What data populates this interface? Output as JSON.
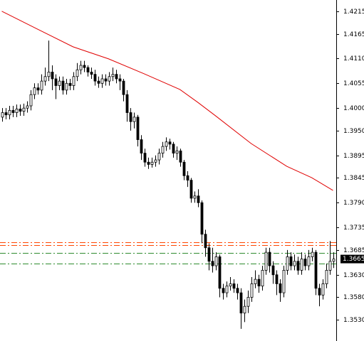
{
  "chart_data": {
    "type": "candlestick",
    "ylim": [
      1.3483,
      1.424
    ],
    "yticks": [
      {
        "value": 1.4215,
        "label": "1.4215"
      },
      {
        "value": 1.4165,
        "label": "1.4165"
      },
      {
        "value": 1.411,
        "label": "1.4110"
      },
      {
        "value": 1.4055,
        "label": "1.4055"
      },
      {
        "value": 1.4,
        "label": "1.4000"
      },
      {
        "value": 1.395,
        "label": "1.3950"
      },
      {
        "value": 1.3895,
        "label": "1.3895"
      },
      {
        "value": 1.3845,
        "label": "1.3845"
      },
      {
        "value": 1.379,
        "label": "1.3790"
      },
      {
        "value": 1.3735,
        "label": "1.3735"
      },
      {
        "value": 1.3685,
        "label": "1.3685"
      },
      {
        "value": 1.363,
        "label": "1.3630"
      },
      {
        "value": 1.358,
        "label": "1.3580"
      },
      {
        "value": 1.353,
        "label": "1.3530"
      }
    ],
    "open": [
      1.398,
      1.399,
      1.3985,
      1.3995,
      1.399,
      1.3998,
      1.3993,
      1.4,
      1.4005,
      1.403,
      1.4045,
      1.404,
      1.406,
      1.407,
      1.408,
      1.4065,
      1.405,
      1.406,
      1.404,
      1.4055,
      1.405,
      1.407,
      1.4085,
      1.4095,
      1.409,
      1.408,
      1.4075,
      1.406,
      1.4055,
      1.4065,
      1.406,
      1.407,
      1.4075,
      1.4065,
      1.406,
      1.403,
      1.399,
      1.397,
      1.398,
      1.393,
      1.39,
      1.388,
      1.3875,
      1.388,
      1.3885,
      1.39,
      1.3915,
      1.3925,
      1.392,
      1.39,
      1.3905,
      1.388,
      1.385,
      1.384,
      1.38,
      1.3805,
      1.379,
      1.372,
      1.369,
      1.366,
      1.365,
      1.367,
      1.36,
      1.359,
      1.3605,
      1.361,
      1.36,
      1.359,
      1.3545,
      1.356,
      1.358,
      1.361,
      1.362,
      1.3605,
      1.364,
      1.368,
      1.365,
      1.363,
      1.361,
      1.359,
      1.364,
      1.367,
      1.365,
      1.366,
      1.364,
      1.3665,
      1.365,
      1.367,
      1.368,
      1.36,
      1.3585,
      1.361,
      1.364,
      1.366
    ],
    "high": [
      1.4,
      1.4,
      1.4005,
      1.4005,
      1.4008,
      1.4008,
      1.401,
      1.4015,
      1.404,
      1.4055,
      1.4055,
      1.4075,
      1.409,
      1.415,
      1.4095,
      1.4075,
      1.407,
      1.407,
      1.4065,
      1.4065,
      1.408,
      1.41,
      1.4105,
      1.4105,
      1.4095,
      1.409,
      1.4085,
      1.407,
      1.4075,
      1.4075,
      1.408,
      1.409,
      1.4085,
      1.4075,
      1.4065,
      1.404,
      1.4,
      1.399,
      1.3985,
      1.394,
      1.391,
      1.389,
      1.389,
      1.3895,
      1.391,
      1.3925,
      1.3935,
      1.3932,
      1.3925,
      1.3915,
      1.391,
      1.3885,
      1.386,
      1.3845,
      1.3815,
      1.382,
      1.3795,
      1.373,
      1.37,
      1.369,
      1.368,
      1.3675,
      1.361,
      1.3615,
      1.3625,
      1.362,
      1.361,
      1.36,
      1.3575,
      1.3595,
      1.3625,
      1.364,
      1.363,
      1.365,
      1.369,
      1.369,
      1.366,
      1.364,
      1.362,
      1.365,
      1.3685,
      1.368,
      1.3675,
      1.367,
      1.368,
      1.3675,
      1.3685,
      1.369,
      1.3685,
      1.361,
      1.362,
      1.3655,
      1.3705,
      1.368
    ],
    "low": [
      1.397,
      1.3975,
      1.3975,
      1.398,
      1.398,
      1.3983,
      1.3983,
      1.399,
      1.3995,
      1.402,
      1.403,
      1.403,
      1.405,
      1.406,
      1.404,
      1.402,
      1.404,
      1.403,
      1.403,
      1.404,
      1.404,
      1.406,
      1.4075,
      1.408,
      1.407,
      1.4065,
      1.405,
      1.4045,
      1.4045,
      1.405,
      1.405,
      1.406,
      1.4055,
      1.404,
      1.4015,
      1.397,
      1.395,
      1.3955,
      1.3915,
      1.3885,
      1.387,
      1.3865,
      1.3868,
      1.387,
      1.3875,
      1.389,
      1.3905,
      1.3908,
      1.389,
      1.3885,
      1.387,
      1.384,
      1.3825,
      1.379,
      1.379,
      1.378,
      1.37,
      1.367,
      1.364,
      1.3635,
      1.364,
      1.358,
      1.3575,
      1.358,
      1.3595,
      1.359,
      1.3575,
      1.351,
      1.3525,
      1.3545,
      1.357,
      1.36,
      1.359,
      1.3595,
      1.363,
      1.3635,
      1.361,
      1.3585,
      1.357,
      1.358,
      1.363,
      1.364,
      1.364,
      1.363,
      1.363,
      1.364,
      1.364,
      1.366,
      1.3585,
      1.356,
      1.3575,
      1.36,
      1.363,
      1.3645
    ],
    "close": [
      1.399,
      1.3985,
      1.3995,
      1.399,
      1.3998,
      1.3993,
      1.4,
      1.4005,
      1.403,
      1.4045,
      1.404,
      1.406,
      1.407,
      1.408,
      1.4065,
      1.405,
      1.406,
      1.404,
      1.4055,
      1.405,
      1.407,
      1.4085,
      1.4095,
      1.409,
      1.408,
      1.4075,
      1.406,
      1.4055,
      1.4065,
      1.406,
      1.407,
      1.4075,
      1.4065,
      1.406,
      1.403,
      1.399,
      1.397,
      1.398,
      1.393,
      1.39,
      1.388,
      1.3875,
      1.388,
      1.3885,
      1.39,
      1.3915,
      1.3925,
      1.392,
      1.39,
      1.3905,
      1.388,
      1.385,
      1.384,
      1.38,
      1.3805,
      1.379,
      1.372,
      1.369,
      1.366,
      1.365,
      1.367,
      1.36,
      1.359,
      1.3605,
      1.361,
      1.36,
      1.359,
      1.3545,
      1.356,
      1.358,
      1.361,
      1.362,
      1.3605,
      1.364,
      1.368,
      1.365,
      1.363,
      1.361,
      1.359,
      1.364,
      1.367,
      1.365,
      1.366,
      1.364,
      1.3665,
      1.365,
      1.367,
      1.368,
      1.36,
      1.3585,
      1.361,
      1.364,
      1.366,
      1.3665
    ],
    "moving_average": {
      "color": "#e00000",
      "x": [
        0,
        10,
        20,
        30,
        40,
        50,
        55,
        60,
        70,
        80,
        87,
        93
      ],
      "values": [
        1.4215,
        1.41755,
        1.41361,
        1.41093,
        1.40761,
        1.40414,
        1.4013,
        1.3983,
        1.39214,
        1.38709,
        1.38457,
        1.38173
      ]
    },
    "levels": [
      {
        "value": 1.3702,
        "color": "#ff4500"
      },
      {
        "value": 1.3696,
        "color": "#ff4500"
      },
      {
        "value": 1.3679,
        "color": "#2e8b2e"
      },
      {
        "value": 1.3655,
        "color": "#2e8b2e"
      }
    ],
    "last_price": 1.3665
  }
}
